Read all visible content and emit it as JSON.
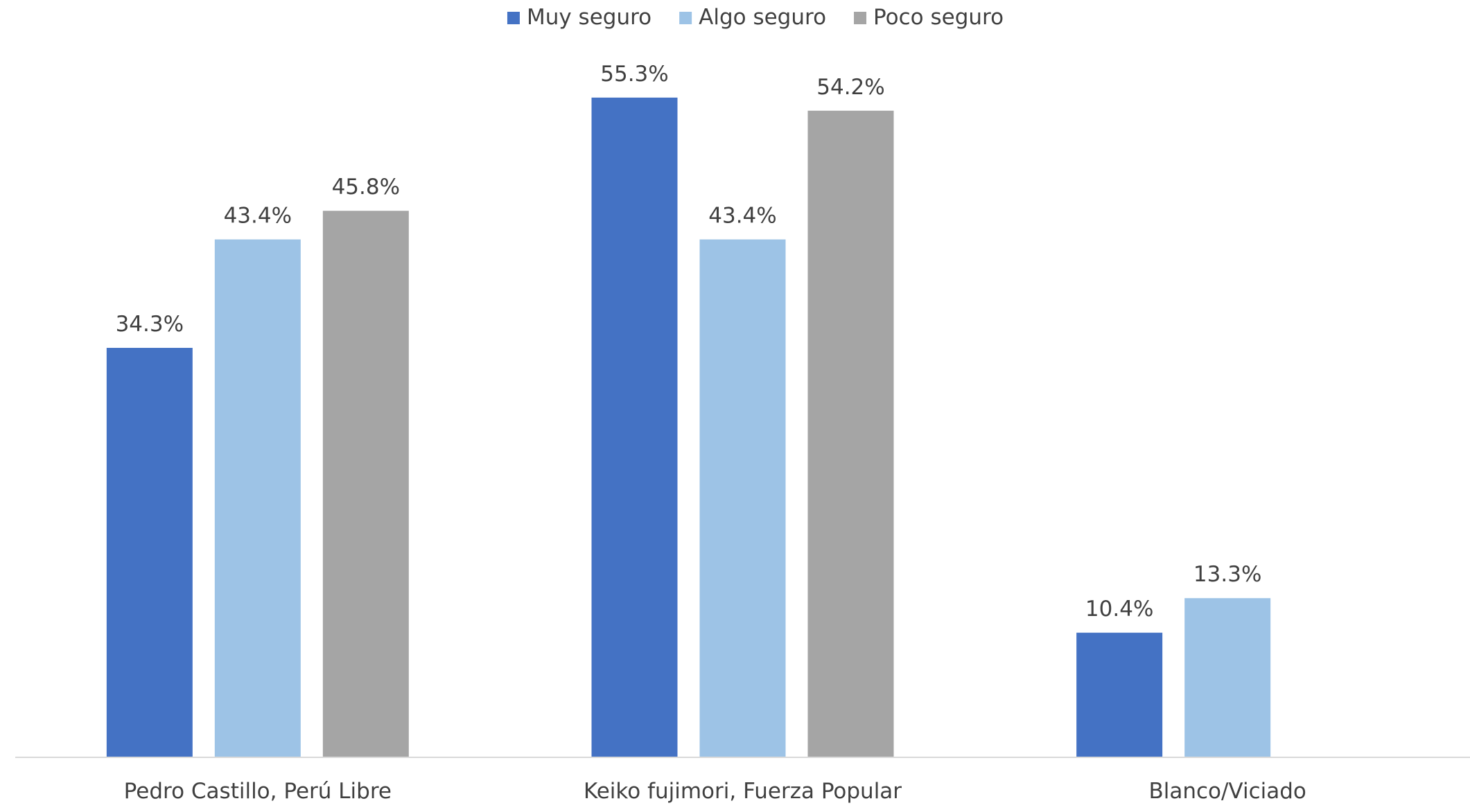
{
  "chart_data": {
    "type": "bar",
    "title": "",
    "xlabel": "",
    "ylabel": "",
    "ylim": [
      0,
      60
    ],
    "grid": false,
    "legend_position": "top-center",
    "categories": [
      "Pedro Castillo, Perú Libre",
      "Keiko fujimori, Fuerza Popular",
      "Blanco/Viciado"
    ],
    "series": [
      {
        "name": "Muy seguro",
        "color": "#4472C4",
        "values": [
          34.3,
          55.3,
          10.4
        ],
        "labels": [
          "34.3%",
          "55.3%",
          "10.4%"
        ]
      },
      {
        "name": "Algo seguro",
        "color": "#9DC3E6",
        "values": [
          43.4,
          43.4,
          13.3
        ],
        "labels": [
          "43.4%",
          "43.4%",
          "13.3%"
        ]
      },
      {
        "name": "Poco seguro",
        "color": "#A5A5A5",
        "values": [
          45.8,
          54.2,
          null
        ],
        "labels": [
          "45.8%",
          "54.2%",
          null
        ]
      }
    ]
  }
}
